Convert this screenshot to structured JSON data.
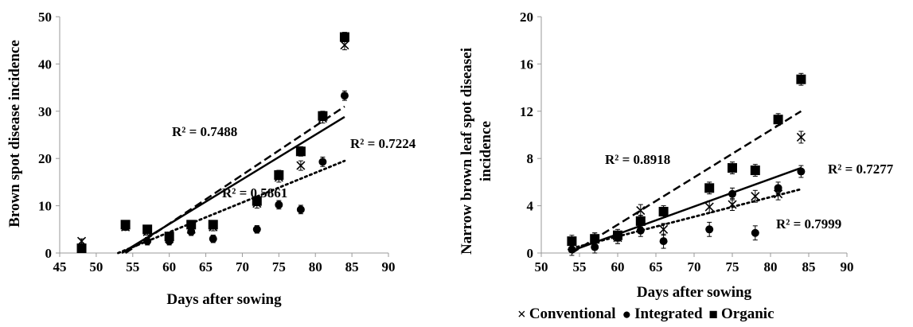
{
  "chart_data": [
    {
      "type": "scatter",
      "title": "",
      "xlabel": "Days after sowing",
      "ylabel": "Brown spot disease incidence",
      "xlim": [
        45,
        90
      ],
      "ylim": [
        0,
        50
      ],
      "xticks": [
        45,
        50,
        55,
        60,
        65,
        70,
        75,
        80,
        85,
        90
      ],
      "yticks": [
        0,
        10,
        20,
        30,
        40,
        50
      ],
      "grid": false,
      "series": [
        {
          "name": "Conventional",
          "marker": "x",
          "x": [
            48,
            54,
            57,
            60,
            63,
            66,
            72,
            75,
            78,
            81,
            84
          ],
          "y": [
            2.5,
            5.5,
            4.5,
            3.0,
            5.0,
            5.5,
            10.5,
            16.0,
            18.5,
            28.5,
            44.0
          ],
          "err": [
            0.5,
            0.7,
            0.7,
            0.7,
            0.8,
            0.8,
            1.0,
            1.0,
            1.0,
            1.0,
            1.0
          ],
          "trend": {
            "x": [
              54,
              84
            ],
            "y": [
              0,
              31
            ],
            "style": "dashed",
            "r2": "R² = 0.7488"
          }
        },
        {
          "name": "Integrated",
          "marker": "circle",
          "x": [
            48,
            54,
            57,
            60,
            63,
            66,
            72,
            75,
            78,
            81,
            84
          ],
          "y": [
            1.0,
            5.5,
            2.5,
            2.5,
            4.5,
            3.0,
            5.0,
            10.2,
            9.2,
            19.3,
            33.3
          ],
          "err": [
            0.5,
            0.7,
            0.8,
            0.8,
            0.8,
            0.8,
            0.8,
            0.9,
            0.9,
            1.0,
            1.0
          ],
          "trend": {
            "x": [
              53,
              84
            ],
            "y": [
              0,
              19.5
            ],
            "style": "dotted",
            "r2": "R² = 0.5861"
          }
        },
        {
          "name": "Organic",
          "marker": "square",
          "x": [
            48,
            54,
            57,
            60,
            63,
            66,
            72,
            75,
            78,
            81,
            84
          ],
          "y": [
            1.0,
            6.0,
            5.0,
            3.5,
            6.0,
            6.0,
            11.0,
            16.5,
            21.5,
            29.0,
            45.7
          ],
          "err": [
            0.5,
            0.7,
            0.7,
            0.8,
            0.8,
            0.8,
            1.0,
            1.0,
            1.0,
            1.0,
            1.0
          ],
          "trend": {
            "x": [
              53.5,
              84
            ],
            "y": [
              0,
              28.8
            ],
            "style": "solid",
            "r2": "R² = 0.7224"
          }
        }
      ]
    },
    {
      "type": "scatter",
      "title": "",
      "xlabel": "Days after sowing",
      "ylabel": "Narrow brown  leaf spot diseasei incidence",
      "ylabel_lines": [
        "Narrow brown  leaf spot diseasei",
        "incidence"
      ],
      "xlim": [
        50,
        90
      ],
      "ylim": [
        0,
        20
      ],
      "xticks": [
        50,
        55,
        60,
        65,
        70,
        75,
        80,
        85,
        90
      ],
      "yticks": [
        0,
        4,
        8,
        12,
        16,
        20
      ],
      "grid": false,
      "series": [
        {
          "name": "Conventional",
          "marker": "x",
          "x": [
            54,
            57,
            60,
            63,
            66,
            72,
            75,
            78,
            81,
            84
          ],
          "y": [
            0.6,
            1.2,
            1.3,
            3.6,
            2.0,
            3.9,
            4.1,
            4.8,
            5.0,
            9.8
          ],
          "err": [
            0.5,
            0.5,
            0.5,
            0.5,
            0.5,
            0.5,
            0.5,
            0.5,
            0.5,
            0.5
          ],
          "trend": {
            "x": [
              54,
              84
            ],
            "y": [
              0,
              12.0
            ],
            "style": "dashed",
            "r2": "R² = 0.8918"
          }
        },
        {
          "name": "Integrated",
          "marker": "circle",
          "x": [
            54,
            57,
            60,
            63,
            66,
            72,
            75,
            78,
            81,
            84
          ],
          "y": [
            0.3,
            0.5,
            1.3,
            1.9,
            1.0,
            2.0,
            5.0,
            1.7,
            5.5,
            6.9
          ],
          "err": [
            0.5,
            0.5,
            0.5,
            0.5,
            0.6,
            0.6,
            0.5,
            0.6,
            0.5,
            0.5
          ],
          "trend": {
            "x": [
              54,
              84
            ],
            "y": [
              0.2,
              7.2
            ],
            "style": "solid",
            "r2": "R² = 0.7999"
          }
        },
        {
          "name": "Organic",
          "marker": "square",
          "x": [
            54,
            57,
            60,
            63,
            66,
            72,
            75,
            78,
            81,
            84
          ],
          "y": [
            1.0,
            1.2,
            1.5,
            2.7,
            3.5,
            5.5,
            7.2,
            7.0,
            11.3,
            14.7
          ],
          "err": [
            0.5,
            0.5,
            0.5,
            0.5,
            0.5,
            0.5,
            0.5,
            0.5,
            0.5,
            0.5
          ],
          "trend": {
            "x": [
              54,
              84
            ],
            "y": [
              0.4,
              5.4
            ],
            "style": "dotted",
            "r2": "R² = 0.7277"
          }
        }
      ]
    }
  ],
  "legend": {
    "items": [
      {
        "marker": "×",
        "label": "Conventional"
      },
      {
        "marker": "●",
        "label": "Integrated"
      },
      {
        "marker": "■",
        "label": "Organic"
      }
    ]
  }
}
